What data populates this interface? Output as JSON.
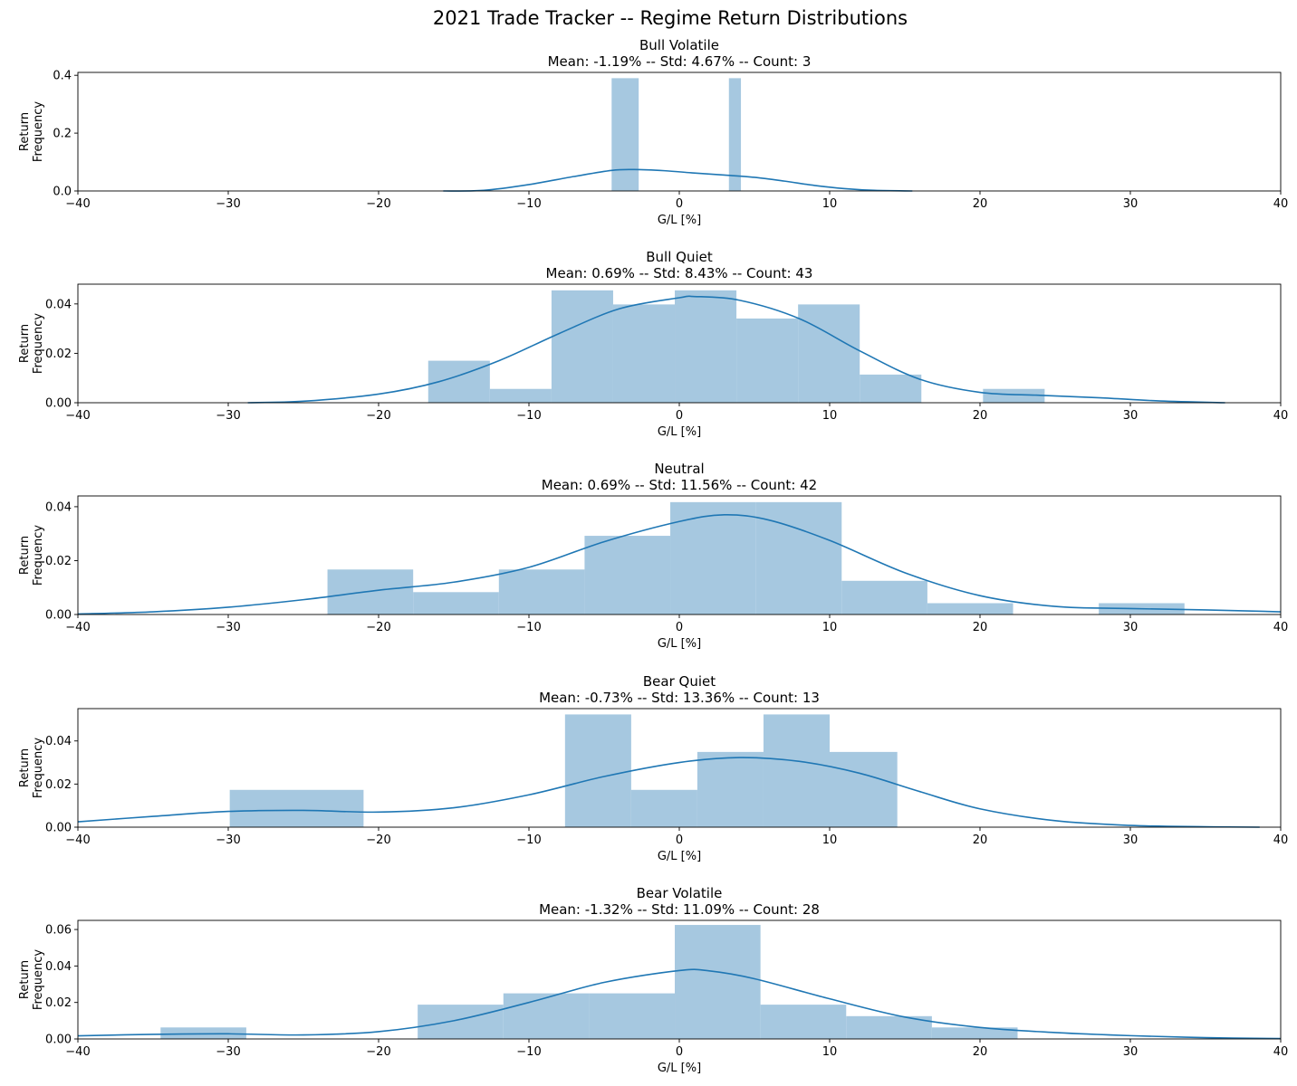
{
  "figure": {
    "title": "2021 Trade Tracker -- Regime Return Distributions",
    "hist_color": "#a6c8e0",
    "kde_color": "#1f77b4"
  },
  "chart_data": [
    {
      "type": "histogram+kde",
      "name": "Bull Volatile",
      "title": "Bull Volatile",
      "subtitle": "Mean: -1.19% -- Std: 4.67% -- Count: 3",
      "xlabel": "G/L [%]",
      "ylabel": [
        "Return",
        "Frequency"
      ],
      "xlim": [
        -40,
        40
      ],
      "ylim": [
        0,
        0.41
      ],
      "xticks": [
        -40,
        -30,
        -20,
        -10,
        0,
        10,
        20,
        30,
        40
      ],
      "xtick_labels": [
        "−40",
        "−30",
        "−20",
        "−10",
        "0",
        "10",
        "20",
        "30",
        "40"
      ],
      "yticks": [
        0.0,
        0.2,
        0.4
      ],
      "ytick_labels": [
        "0.0",
        "0.2",
        "0.4"
      ],
      "bins": [
        {
          "x0": -4.5,
          "x1": -2.7,
          "density": 0.39
        },
        {
          "x0": 3.3,
          "x1": 4.1,
          "density": 0.39
        }
      ],
      "kde": [
        [
          -15.7,
          0.0
        ],
        [
          -13,
          0.002
        ],
        [
          -10,
          0.022
        ],
        [
          -7,
          0.05
        ],
        [
          -4.5,
          0.071
        ],
        [
          -3,
          0.074
        ],
        [
          -1,
          0.07
        ],
        [
          1,
          0.062
        ],
        [
          3,
          0.055
        ],
        [
          5,
          0.047
        ],
        [
          7,
          0.034
        ],
        [
          9,
          0.019
        ],
        [
          11,
          0.008
        ],
        [
          13,
          0.002
        ],
        [
          15.5,
          0.0
        ]
      ]
    },
    {
      "type": "histogram+kde",
      "name": "Bull Quiet",
      "title": "Bull Quiet",
      "subtitle": "Mean: 0.69% -- Std: 8.43% -- Count: 43",
      "xlabel": "G/L [%]",
      "ylabel": [
        "Return",
        "Frequency"
      ],
      "xlim": [
        -40,
        40
      ],
      "ylim": [
        0,
        0.048
      ],
      "xticks": [
        -40,
        -30,
        -20,
        -10,
        0,
        10,
        20,
        30,
        40
      ],
      "xtick_labels": [
        "−40",
        "−30",
        "−20",
        "−10",
        "0",
        "10",
        "20",
        "30",
        "40"
      ],
      "yticks": [
        0.0,
        0.02,
        0.04
      ],
      "ytick_labels": [
        "0.00",
        "0.02",
        "0.04"
      ],
      "bins": [
        {
          "x0": -16.7,
          "x1": -12.6,
          "density": 0.017
        },
        {
          "x0": -12.6,
          "x1": -8.5,
          "density": 0.0056
        },
        {
          "x0": -8.5,
          "x1": -4.4,
          "density": 0.0455
        },
        {
          "x0": -4.4,
          "x1": -0.3,
          "density": 0.0398
        },
        {
          "x0": -0.3,
          "x1": 3.8,
          "density": 0.0455
        },
        {
          "x0": 3.8,
          "x1": 7.9,
          "density": 0.0341
        },
        {
          "x0": 7.9,
          "x1": 12.0,
          "density": 0.0398
        },
        {
          "x0": 12.0,
          "x1": 16.1,
          "density": 0.0114
        },
        {
          "x0": 20.2,
          "x1": 24.3,
          "density": 0.0056
        }
      ],
      "kde": [
        [
          -28.7,
          0.0
        ],
        [
          -25,
          0.0006
        ],
        [
          -20,
          0.0035
        ],
        [
          -16,
          0.0085
        ],
        [
          -12,
          0.017
        ],
        [
          -8,
          0.028
        ],
        [
          -4,
          0.038
        ],
        [
          0,
          0.0425
        ],
        [
          1,
          0.043
        ],
        [
          4,
          0.0415
        ],
        [
          8,
          0.034
        ],
        [
          12,
          0.021
        ],
        [
          16,
          0.0095
        ],
        [
          20,
          0.0042
        ],
        [
          24,
          0.003
        ],
        [
          28,
          0.002
        ],
        [
          32,
          0.0007
        ],
        [
          36.3,
          0.0
        ]
      ]
    },
    {
      "type": "histogram+kde",
      "name": "Neutral",
      "title": "Neutral",
      "subtitle": "Mean: 0.69% -- Std: 11.56% -- Count: 42",
      "xlabel": "G/L [%]",
      "ylabel": [
        "Return",
        "Frequency"
      ],
      "xlim": [
        -40,
        40
      ],
      "ylim": [
        0,
        0.044
      ],
      "xticks": [
        -40,
        -30,
        -20,
        -10,
        0,
        10,
        20,
        30,
        40
      ],
      "xtick_labels": [
        "−40",
        "−30",
        "−20",
        "−10",
        "0",
        "10",
        "20",
        "30",
        "40"
      ],
      "yticks": [
        0.0,
        0.02,
        0.04
      ],
      "ytick_labels": [
        "0.00",
        "0.02",
        "0.04"
      ],
      "bins": [
        {
          "x0": -23.4,
          "x1": -17.7,
          "density": 0.0167
        },
        {
          "x0": -17.7,
          "x1": -12.0,
          "density": 0.0083
        },
        {
          "x0": -12.0,
          "x1": -6.3,
          "density": 0.0167
        },
        {
          "x0": -6.3,
          "x1": -0.6,
          "density": 0.0292
        },
        {
          "x0": -0.6,
          "x1": 5.1,
          "density": 0.0417
        },
        {
          "x0": 5.1,
          "x1": 10.8,
          "density": 0.0417
        },
        {
          "x0": 10.8,
          "x1": 16.5,
          "density": 0.0125
        },
        {
          "x0": 16.5,
          "x1": 22.2,
          "density": 0.0042
        },
        {
          "x0": 27.9,
          "x1": 33.6,
          "density": 0.0042
        }
      ],
      "kde": [
        [
          -40,
          0.0002
        ],
        [
          -35,
          0.001
        ],
        [
          -30,
          0.0027
        ],
        [
          -25,
          0.0055
        ],
        [
          -20,
          0.009
        ],
        [
          -15,
          0.012
        ],
        [
          -10,
          0.0175
        ],
        [
          -5,
          0.027
        ],
        [
          0,
          0.0345
        ],
        [
          3,
          0.037
        ],
        [
          6,
          0.035
        ],
        [
          10,
          0.0275
        ],
        [
          15,
          0.0155
        ],
        [
          20,
          0.007
        ],
        [
          25,
          0.003
        ],
        [
          30,
          0.0022
        ],
        [
          35,
          0.0017
        ],
        [
          40,
          0.001
        ]
      ]
    },
    {
      "type": "histogram+kde",
      "name": "Bear Quiet",
      "title": "Bear Quiet",
      "subtitle": "Mean: -0.73% -- Std: 13.36% -- Count: 13",
      "xlabel": "G/L [%]",
      "ylabel": [
        "Return",
        "Frequency"
      ],
      "xlim": [
        -40,
        40
      ],
      "ylim": [
        0,
        0.055
      ],
      "xticks": [
        -40,
        -30,
        -20,
        -10,
        0,
        10,
        20,
        30,
        40
      ],
      "xtick_labels": [
        "−40",
        "−30",
        "−20",
        "−10",
        "0",
        "10",
        "20",
        "30",
        "40"
      ],
      "yticks": [
        0.0,
        0.02,
        0.04
      ],
      "ytick_labels": [
        "0.00",
        "0.02",
        "0.04"
      ],
      "bins": [
        {
          "x0": -29.9,
          "x1": -21.0,
          "density": 0.0173
        },
        {
          "x0": -7.6,
          "x1": -3.2,
          "density": 0.0523
        },
        {
          "x0": -3.2,
          "x1": 1.2,
          "density": 0.0173
        },
        {
          "x0": 1.2,
          "x1": 5.6,
          "density": 0.0349
        },
        {
          "x0": 5.6,
          "x1": 10.0,
          "density": 0.0523
        },
        {
          "x0": 10.0,
          "x1": 14.5,
          "density": 0.0349
        }
      ],
      "kde": [
        [
          -40,
          0.0025
        ],
        [
          -35,
          0.005
        ],
        [
          -30,
          0.0073
        ],
        [
          -25,
          0.0078
        ],
        [
          -20,
          0.007
        ],
        [
          -15,
          0.009
        ],
        [
          -10,
          0.015
        ],
        [
          -5,
          0.0235
        ],
        [
          0,
          0.03
        ],
        [
          4,
          0.0323
        ],
        [
          8,
          0.0305
        ],
        [
          12,
          0.025
        ],
        [
          16,
          0.0165
        ],
        [
          20,
          0.0085
        ],
        [
          25,
          0.003
        ],
        [
          30,
          0.0008
        ],
        [
          35,
          0.0002
        ],
        [
          38.6,
          0.0
        ]
      ]
    },
    {
      "type": "histogram+kde",
      "name": "Bear Volatile",
      "title": "Bear Volatile",
      "subtitle": "Mean: -1.32% -- Std: 11.09% -- Count: 28",
      "xlabel": "G/L [%]",
      "ylabel": [
        "Return",
        "Frequency"
      ],
      "xlim": [
        -40,
        40
      ],
      "ylim": [
        0,
        0.065
      ],
      "xticks": [
        -40,
        -30,
        -20,
        -10,
        0,
        10,
        20,
        30,
        40
      ],
      "xtick_labels": [
        "−40",
        "−30",
        "−20",
        "−10",
        "0",
        "10",
        "20",
        "30",
        "40"
      ],
      "yticks": [
        0.0,
        0.02,
        0.04,
        0.06
      ],
      "ytick_labels": [
        "0.00",
        "0.02",
        "0.04",
        "0.06"
      ],
      "bins": [
        {
          "x0": -34.5,
          "x1": -28.8,
          "density": 0.0063
        },
        {
          "x0": -17.4,
          "x1": -11.7,
          "density": 0.0188
        },
        {
          "x0": -11.7,
          "x1": -6.0,
          "density": 0.025
        },
        {
          "x0": -6.0,
          "x1": -0.3,
          "density": 0.025
        },
        {
          "x0": -0.3,
          "x1": 5.4,
          "density": 0.0625
        },
        {
          "x0": 5.4,
          "x1": 11.1,
          "density": 0.0188
        },
        {
          "x0": 11.1,
          "x1": 16.8,
          "density": 0.0125
        },
        {
          "x0": 16.8,
          "x1": 22.5,
          "density": 0.0063
        }
      ],
      "kde": [
        [
          -40,
          0.0017
        ],
        [
          -35,
          0.0025
        ],
        [
          -30,
          0.0028
        ],
        [
          -25,
          0.0022
        ],
        [
          -20,
          0.004
        ],
        [
          -15,
          0.01
        ],
        [
          -10,
          0.02
        ],
        [
          -5,
          0.031
        ],
        [
          0,
          0.0375
        ],
        [
          2,
          0.0373
        ],
        [
          5,
          0.033
        ],
        [
          10,
          0.022
        ],
        [
          15,
          0.012
        ],
        [
          20,
          0.0063
        ],
        [
          25,
          0.0035
        ],
        [
          30,
          0.0018
        ],
        [
          35,
          0.0007
        ],
        [
          40,
          0.0002
        ]
      ]
    }
  ]
}
